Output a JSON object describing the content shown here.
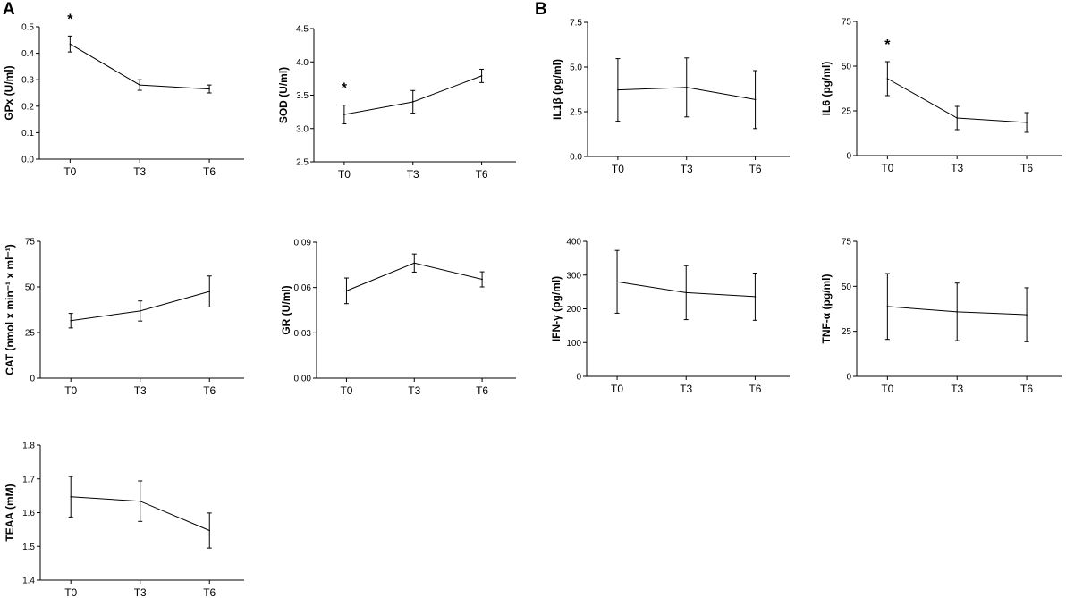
{
  "figure": {
    "panel_labels": [
      "A",
      "B"
    ]
  },
  "chart_data": [
    {
      "id": "gpx",
      "type": "line",
      "panel": "A",
      "categories": [
        "T0",
        "T3",
        "T6"
      ],
      "values": [
        0.435,
        0.28,
        0.265
      ],
      "errors": [
        0.03,
        0.02,
        0.015
      ],
      "ylabel": "GPx (U/ml)",
      "ylim": [
        0.0,
        0.5
      ],
      "yticks": [
        "0.0",
        "0.1",
        "0.2",
        "0.3",
        "0.4",
        "0.5"
      ],
      "annotations": [
        "*"
      ]
    },
    {
      "id": "sod",
      "type": "line",
      "panel": "A",
      "categories": [
        "T0",
        "T3",
        "T6"
      ],
      "values": [
        3.21,
        3.4,
        3.79
      ],
      "errors": [
        0.14,
        0.17,
        0.1
      ],
      "ylabel": "SOD (U/ml)",
      "ylim": [
        2.5,
        4.5
      ],
      "yticks": [
        "2.5",
        "3.0",
        "3.5",
        "4.0",
        "4.5"
      ],
      "annotations": [
        "*"
      ]
    },
    {
      "id": "il1b",
      "type": "line",
      "panel": "B",
      "categories": [
        "T0",
        "T3",
        "T6"
      ],
      "values": [
        3.72,
        3.86,
        3.18
      ],
      "errors": [
        1.75,
        1.65,
        1.62
      ],
      "ylabel": "IL1β (pg/ml)",
      "ylim": [
        0.0,
        7.5
      ],
      "yticks": [
        "0.0",
        "2.5",
        "5.0",
        "7.5"
      ],
      "annotations": []
    },
    {
      "id": "il6",
      "type": "line",
      "panel": "B",
      "categories": [
        "T0",
        "T3",
        "T6"
      ],
      "values": [
        43.0,
        21.0,
        18.5
      ],
      "errors": [
        9.5,
        6.5,
        5.5
      ],
      "ylabel": "IL6 (pg/ml)",
      "ylim": [
        0,
        75
      ],
      "yticks": [
        "0",
        "25",
        "50",
        "75"
      ],
      "annotations": [
        "*"
      ]
    },
    {
      "id": "cat",
      "type": "line",
      "panel": "A",
      "categories": [
        "T0",
        "T3",
        "T6"
      ],
      "values": [
        31.5,
        36.8,
        47.5
      ],
      "errors": [
        4.0,
        5.5,
        8.5
      ],
      "ylabel": "CAT (nmol x min⁻¹ x ml⁻¹)",
      "ylim": [
        0,
        75
      ],
      "yticks": [
        "0",
        "25",
        "50",
        "75"
      ],
      "annotations": []
    },
    {
      "id": "gr",
      "type": "line",
      "panel": "A",
      "categories": [
        "T0",
        "T3",
        "T6"
      ],
      "values": [
        0.0578,
        0.0762,
        0.0654
      ],
      "errors": [
        0.0085,
        0.006,
        0.005
      ],
      "ylabel": "GR (U/ml)",
      "ylim": [
        0.0,
        0.09
      ],
      "yticks": [
        "0.00",
        "0.03",
        "0.06",
        "0.09"
      ],
      "annotations": []
    },
    {
      "id": "ifng",
      "type": "line",
      "panel": "B",
      "categories": [
        "T0",
        "T3",
        "T6"
      ],
      "values": [
        280,
        248,
        236
      ],
      "errors": [
        93,
        80,
        70
      ],
      "ylabel": "IFN-γ (pg/ml)",
      "ylim": [
        0,
        400
      ],
      "yticks": [
        "0",
        "100",
        "200",
        "300",
        "400"
      ],
      "annotations": []
    },
    {
      "id": "tnfa",
      "type": "line",
      "panel": "B",
      "categories": [
        "T0",
        "T3",
        "T6"
      ],
      "values": [
        38.8,
        35.8,
        34.2
      ],
      "errors": [
        18.3,
        16.0,
        15.0
      ],
      "ylabel": "TNF-α (pg/ml)",
      "ylim": [
        0,
        75
      ],
      "yticks": [
        "0",
        "25",
        "50",
        "75"
      ],
      "annotations": []
    },
    {
      "id": "teaa",
      "type": "line",
      "panel": "A",
      "categories": [
        "T0",
        "T3",
        "T6"
      ],
      "values": [
        1.647,
        1.634,
        1.547
      ],
      "errors": [
        0.06,
        0.06,
        0.052
      ],
      "ylabel": "TEAA (mM)",
      "ylim": [
        1.4,
        1.8
      ],
      "yticks": [
        "1.4",
        "1.5",
        "1.6",
        "1.7",
        "1.8"
      ],
      "annotations": []
    }
  ]
}
